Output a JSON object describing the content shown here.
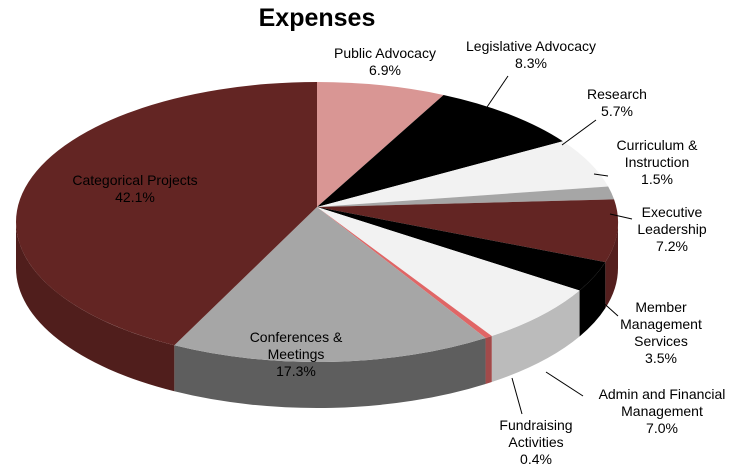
{
  "chart_data": {
    "type": "pie",
    "title": "Expenses",
    "categories": [
      "Public Advocacy",
      "Legislative Advocacy",
      "Research",
      "Curriculum & Instruction",
      "Executive Leadership",
      "Member Management Services",
      "Admin and Financial Management",
      "Fundraising Activities",
      "Conferences & Meetings",
      "Categorical Projects"
    ],
    "values": [
      6.9,
      8.3,
      5.7,
      1.5,
      7.2,
      3.5,
      7.0,
      0.4,
      17.3,
      42.1
    ],
    "value_labels": [
      "6.9%",
      "8.3%",
      "5.7%",
      "1.5%",
      "7.2%",
      "3.5%",
      "7.0%",
      "0.4%",
      "17.3%",
      "42.1%"
    ],
    "colors": [
      "#d99694",
      "#000000",
      "#f2f2f2",
      "#a6a6a6",
      "#632523",
      "#000000",
      "#f2f2f2",
      "#e06666",
      "#a6a6a6",
      "#632523"
    ]
  }
}
